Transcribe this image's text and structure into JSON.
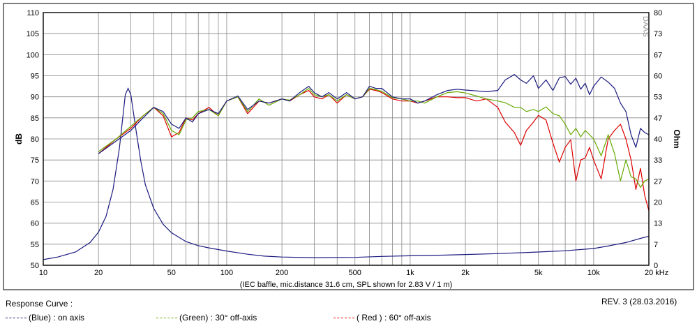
{
  "chart_data": {
    "type": "line",
    "title": "",
    "xlabel": "(IEC baffle, mic.distance 31.6 cm, SPL shown for 2.83 V / 1 m)",
    "ylabel": "dB",
    "y2label": "Ohm",
    "x_scale": "log",
    "xlim": [
      10,
      20000
    ],
    "ylim": [
      50,
      110
    ],
    "y2lim": [
      0,
      80
    ],
    "grid": true,
    "x_ticks": [
      {
        "value": 10,
        "label": "10"
      },
      {
        "value": 20,
        "label": "20"
      },
      {
        "value": 50,
        "label": "50"
      },
      {
        "value": 100,
        "label": "100"
      },
      {
        "value": 200,
        "label": "200"
      },
      {
        "value": 500,
        "label": "500"
      },
      {
        "value": 1000,
        "label": "1k"
      },
      {
        "value": 2000,
        "label": "2k"
      },
      {
        "value": 5000,
        "label": "5k"
      },
      {
        "value": 10000,
        "label": "10k"
      },
      {
        "value": 20000,
        "label": "20 kHz"
      }
    ],
    "y_ticks": [
      "110",
      "105",
      "100",
      "95",
      "90",
      "85",
      "80",
      "75",
      "70",
      "65",
      "60",
      "55",
      "50"
    ],
    "y2_ticks": [
      "80",
      "73",
      "67",
      "60",
      "53",
      "47",
      "40",
      "33",
      "27",
      "20",
      "13",
      "7",
      "0"
    ],
    "watermark": "DAAS",
    "series": [
      {
        "name": "(Blue) : on axis",
        "color": "#1a1a80",
        "x": [
          20,
          25,
          30,
          35,
          40,
          45,
          50,
          55,
          60,
          65,
          70,
          80,
          90,
          100,
          115,
          130,
          150,
          170,
          200,
          220,
          250,
          280,
          300,
          330,
          360,
          400,
          450,
          500,
          550,
          600,
          650,
          700,
          800,
          900,
          1000,
          1100,
          1200,
          1400,
          1600,
          1800,
          2000,
          2300,
          2600,
          3000,
          3300,
          3700,
          4000,
          4300,
          4700,
          5000,
          5500,
          6000,
          6500,
          7000,
          7500,
          8000,
          8500,
          9000,
          9500,
          10000,
          11000,
          12000,
          13000,
          14000,
          15000,
          16000,
          17000,
          18000,
          19000,
          20000
        ],
        "y": [
          76.5,
          79.5,
          82,
          85,
          87.5,
          86.5,
          83.5,
          82.5,
          85,
          84,
          86,
          87,
          86,
          89,
          90.2,
          87,
          89,
          88.5,
          89.5,
          89,
          91,
          92.5,
          91,
          90,
          91,
          89.5,
          91,
          89.5,
          90,
          92.5,
          92,
          92,
          90,
          89.5,
          89.5,
          88.5,
          89,
          90.5,
          91.5,
          91.8,
          91.6,
          91.4,
          91.2,
          91.5,
          94,
          95.3,
          94,
          93.2,
          95,
          92,
          94,
          91.5,
          94.5,
          94.8,
          93,
          94.4,
          91.8,
          93.2,
          90.5,
          92.5,
          94.7,
          93.5,
          92,
          88.5,
          86.5,
          81,
          78,
          82.5,
          81.5,
          81
        ]
      },
      {
        "name": "(Green) : 30° off-axis",
        "color": "#66aa00",
        "x": [
          20,
          25,
          30,
          35,
          40,
          45,
          50,
          55,
          60,
          65,
          70,
          80,
          90,
          100,
          115,
          130,
          150,
          170,
          200,
          220,
          250,
          280,
          300,
          330,
          360,
          400,
          450,
          500,
          550,
          600,
          650,
          700,
          800,
          900,
          1000,
          1100,
          1200,
          1400,
          1600,
          1800,
          2000,
          2300,
          2600,
          3000,
          3300,
          3700,
          4000,
          4300,
          4700,
          5000,
          5500,
          6000,
          6500,
          7000,
          7500,
          8000,
          8500,
          9000,
          9500,
          10000,
          11000,
          12000,
          13000,
          14000,
          15000,
          16000,
          17000,
          18000,
          19000,
          20000
        ],
        "y": [
          77,
          80,
          83,
          85.5,
          87.5,
          86,
          82,
          81,
          84.5,
          85,
          86.5,
          87,
          85.5,
          89,
          90,
          86.5,
          89.5,
          88,
          89.5,
          89.2,
          90.5,
          92,
          90.5,
          90,
          90.5,
          89,
          90.5,
          89.5,
          90,
          92,
          91.7,
          91.3,
          89.8,
          89.5,
          89,
          89,
          88.5,
          90,
          91,
          91.2,
          90.9,
          90.2,
          89.5,
          89,
          88.6,
          87.5,
          87.5,
          86.5,
          87,
          86.5,
          87.6,
          86,
          85.5,
          83.5,
          81,
          82.5,
          80.5,
          82,
          81,
          80,
          76,
          81,
          76.5,
          70,
          75,
          71,
          70.5,
          68.5,
          70,
          70.5
        ]
      },
      {
        "name": "( Red ) : 60° off-axis",
        "color": "#dd0000",
        "x": [
          20,
          25,
          30,
          35,
          40,
          45,
          50,
          55,
          60,
          65,
          70,
          80,
          90,
          100,
          115,
          130,
          150,
          170,
          200,
          220,
          250,
          280,
          300,
          330,
          360,
          400,
          450,
          500,
          550,
          600,
          650,
          700,
          800,
          900,
          1000,
          1100,
          1200,
          1400,
          1600,
          1800,
          2000,
          2300,
          2600,
          3000,
          3300,
          3700,
          4000,
          4300,
          4700,
          5000,
          5500,
          6000,
          6500,
          7000,
          7500,
          8000,
          8500,
          9000,
          9500,
          10000,
          11000,
          12000,
          13000,
          14000,
          15000,
          16000,
          17000,
          18000,
          19000,
          20000
        ],
        "y": [
          76.5,
          80,
          82.5,
          85.5,
          87.5,
          85.5,
          80.5,
          81.5,
          85,
          84.5,
          86,
          87.5,
          85.5,
          89,
          90,
          86,
          89,
          88.5,
          89.5,
          89,
          90.5,
          91.5,
          90,
          89.5,
          90.5,
          88.5,
          90.5,
          89.5,
          90,
          91.8,
          91.5,
          91,
          89.5,
          89,
          89,
          88.5,
          89,
          90,
          90,
          89.8,
          89.8,
          89,
          89.5,
          87.5,
          84,
          81.5,
          78.5,
          82,
          84,
          85.6,
          84.5,
          79,
          74.5,
          78,
          79.8,
          70,
          75,
          75.5,
          78,
          75,
          70.5,
          80,
          82,
          83.5,
          80,
          75,
          68,
          73,
          66.5,
          63
        ]
      }
    ],
    "impedance": {
      "name": "(Blue) : on axis",
      "color": "#1a1a80",
      "x": [
        10,
        12,
        15,
        18,
        20,
        22,
        24,
        26,
        28,
        29,
        30,
        32,
        34,
        36,
        40,
        45,
        50,
        60,
        70,
        80,
        100,
        130,
        160,
        200,
        300,
        500,
        700,
        1000,
        1500,
        2000,
        3000,
        5000,
        7000,
        10000,
        12000,
        15000,
        18000,
        20000
      ],
      "y": [
        1.8,
        2.6,
        4.2,
        7.2,
        10.5,
        15.5,
        24,
        37,
        54,
        56,
        54,
        43,
        33,
        25.5,
        18,
        13,
        10.3,
        7.5,
        6.2,
        5.5,
        4.5,
        3.5,
        2.9,
        2.6,
        2.4,
        2.5,
        2.8,
        3,
        3.2,
        3.4,
        3.7,
        4.2,
        4.6,
        5.3,
        6.1,
        7.2,
        8.5,
        9.2
      ]
    }
  },
  "footer": {
    "response_curve": "Response Curve :",
    "revision": "REV. 3 (28.03.2016)"
  },
  "legend": [
    {
      "text": "(Blue) : on axis",
      "color": "#1a1a80"
    },
    {
      "text": "(Green) : 30° off-axis",
      "color": "#66aa00"
    },
    {
      "text": "( Red ) : 60° off-axis",
      "color": "#dd0000"
    }
  ]
}
